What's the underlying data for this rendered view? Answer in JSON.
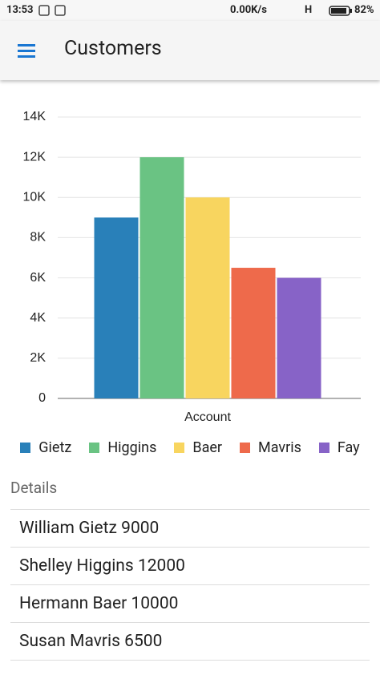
{
  "status_bar": {
    "time": "13:53",
    "speed": "0.00K/s",
    "network": "H",
    "battery": "82%"
  },
  "header": {
    "title": "Customers"
  },
  "chart_data": {
    "type": "bar",
    "x_label": "Account",
    "categories": [
      "Account"
    ],
    "series": [
      {
        "name": "Gietz",
        "color": "#2980b9",
        "values": [
          9000
        ]
      },
      {
        "name": "Higgins",
        "color": "#6ac383",
        "values": [
          12000
        ]
      },
      {
        "name": "Baer",
        "color": "#f8d55f",
        "values": [
          10000
        ]
      },
      {
        "name": "Mavris",
        "color": "#ee6a4b",
        "values": [
          6500
        ]
      },
      {
        "name": "Fay",
        "color": "#8763c7",
        "values": [
          6000
        ]
      }
    ],
    "ylim": [
      0,
      14000
    ],
    "yticks": [
      0,
      {
        "value": 2000,
        "label": "2K"
      },
      {
        "value": 4000,
        "label": "4K"
      },
      {
        "value": 6000,
        "label": "6K"
      },
      {
        "value": 8000,
        "label": "8K"
      },
      {
        "value": 10000,
        "label": "10K"
      },
      {
        "value": 12000,
        "label": "12K"
      },
      {
        "value": 14000,
        "label": "14K"
      }
    ],
    "grid": true,
    "legend": "bottom"
  },
  "details": {
    "title": "Details",
    "items": [
      "William Gietz 9000",
      "Shelley Higgins 12000",
      "Hermann Baer 10000",
      "Susan Mavris 6500"
    ]
  }
}
